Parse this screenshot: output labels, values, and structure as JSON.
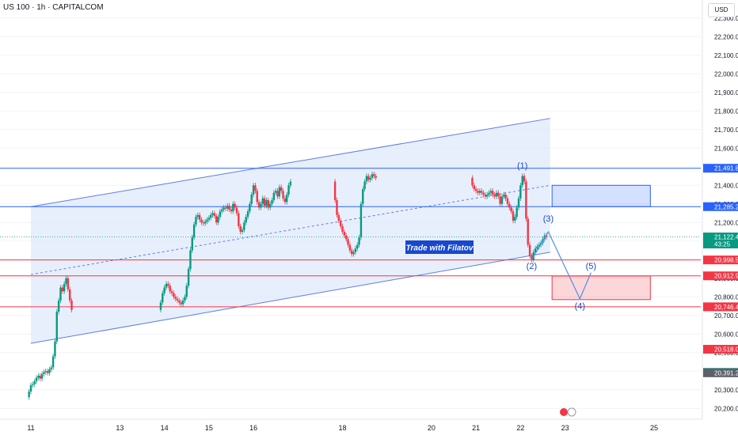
{
  "chart_data": {
    "type": "candlestick",
    "title": "US 100 · 1h · CAPITALCOM",
    "currency": "USD",
    "watermark_text": "Trade with Filatov",
    "ylim": [
      20150,
      22380
    ],
    "y_ticks": [
      20200,
      20300,
      20400,
      20500,
      20600,
      20700,
      20800,
      20900,
      21000,
      21100,
      21200,
      21300,
      21400,
      21500,
      21600,
      21700,
      21800,
      21900,
      22000,
      22100,
      22200,
      22300
    ],
    "y_tick_labels": [
      "20,200.0",
      "20,300.0",
      "20,400.0",
      "20,500.0",
      "20,600.0",
      "20,700.0",
      "20,800.0",
      "20,900.0",
      "21,000.0",
      "21,100.0",
      "21,200.0",
      "21,300.0",
      "21,400.0",
      "21,500.0",
      "21,600.0",
      "21,700.0",
      "21,800.0",
      "21,900.0",
      "22,000.0",
      "22,100.0",
      "22,200.0",
      "22,300.0"
    ],
    "x_ticks": [
      {
        "date": "2025-07-11",
        "label": "11"
      },
      {
        "date": "2025-07-13",
        "label": "13"
      },
      {
        "date": "2025-07-14",
        "label": "14"
      },
      {
        "date": "2025-07-15",
        "label": "15"
      },
      {
        "date": "2025-07-16",
        "label": "16"
      },
      {
        "date": "2025-07-18",
        "label": "18"
      },
      {
        "date": "2025-07-20",
        "label": "20"
      },
      {
        "date": "2025-07-21",
        "label": "21"
      },
      {
        "date": "2025-07-22",
        "label": "22"
      },
      {
        "date": "2025-07-23",
        "label": "23"
      },
      {
        "date": "2025-07-25",
        "label": "25"
      }
    ],
    "price_series": {
      "name": "US 100",
      "points": [
        [
          "2025-07-10T23:00",
          20290
        ],
        [
          "2025-07-11T00:00",
          20325
        ],
        [
          "2025-07-11T01:00",
          20330
        ],
        [
          "2025-07-11T02:00",
          20345
        ],
        [
          "2025-07-11T03:00",
          20365
        ],
        [
          "2025-07-11T04:00",
          20375
        ],
        [
          "2025-07-11T05:00",
          20360
        ],
        [
          "2025-07-11T06:00",
          20385
        ],
        [
          "2025-07-11T07:00",
          20395
        ],
        [
          "2025-07-11T08:00",
          20400
        ],
        [
          "2025-07-11T09:00",
          20390
        ],
        [
          "2025-07-11T10:00",
          20410
        ],
        [
          "2025-07-11T11:00",
          20420
        ],
        [
          "2025-07-11T12:00",
          20480
        ],
        [
          "2025-07-11T13:00",
          20560
        ],
        [
          "2025-07-11T14:00",
          20720
        ],
        [
          "2025-07-11T15:00",
          20780
        ],
        [
          "2025-07-11T16:00",
          20850
        ],
        [
          "2025-07-11T17:00",
          20830
        ],
        [
          "2025-07-11T18:00",
          20870
        ],
        [
          "2025-07-11T19:00",
          20900
        ],
        [
          "2025-07-11T20:00",
          20840
        ],
        [
          "2025-07-11T21:00",
          20780
        ],
        [
          "2025-07-11T22:00",
          20730
        ],
        [
          "2025-07-13T22:00",
          20770
        ],
        [
          "2025-07-13T23:00",
          20820
        ],
        [
          "2025-07-14T00:00",
          20850
        ],
        [
          "2025-07-14T01:00",
          20870
        ],
        [
          "2025-07-14T02:00",
          20860
        ],
        [
          "2025-07-14T03:00",
          20830
        ],
        [
          "2025-07-14T04:00",
          20820
        ],
        [
          "2025-07-14T05:00",
          20800
        ],
        [
          "2025-07-14T06:00",
          20790
        ],
        [
          "2025-07-14T07:00",
          20780
        ],
        [
          "2025-07-14T08:00",
          20770
        ],
        [
          "2025-07-14T09:00",
          20760
        ],
        [
          "2025-07-14T10:00",
          20780
        ],
        [
          "2025-07-14T11:00",
          20800
        ],
        [
          "2025-07-14T12:00",
          20860
        ],
        [
          "2025-07-14T13:00",
          20950
        ],
        [
          "2025-07-14T14:00",
          21050
        ],
        [
          "2025-07-14T15:00",
          21120
        ],
        [
          "2025-07-14T16:00",
          21190
        ],
        [
          "2025-07-14T17:00",
          21230
        ],
        [
          "2025-07-14T18:00",
          21240
        ],
        [
          "2025-07-14T19:00",
          21215
        ],
        [
          "2025-07-14T20:00",
          21200
        ],
        [
          "2025-07-14T21:00",
          21195
        ],
        [
          "2025-07-14T22:00",
          21205
        ],
        [
          "2025-07-14T23:00",
          21215
        ],
        [
          "2025-07-15T00:00",
          21225
        ],
        [
          "2025-07-15T01:00",
          21240
        ],
        [
          "2025-07-15T02:00",
          21250
        ],
        [
          "2025-07-15T03:00",
          21235
        ],
        [
          "2025-07-15T04:00",
          21200
        ],
        [
          "2025-07-15T05:00",
          21230
        ],
        [
          "2025-07-15T06:00",
          21260
        ],
        [
          "2025-07-15T07:00",
          21270
        ],
        [
          "2025-07-15T08:00",
          21280
        ],
        [
          "2025-07-15T09:00",
          21275
        ],
        [
          "2025-07-15T10:00",
          21290
        ],
        [
          "2025-07-15T11:00",
          21270
        ],
        [
          "2025-07-15T12:00",
          21260
        ],
        [
          "2025-07-15T13:00",
          21300
        ],
        [
          "2025-07-15T14:00",
          21280
        ],
        [
          "2025-07-15T15:00",
          21250
        ],
        [
          "2025-07-15T16:00",
          21180
        ],
        [
          "2025-07-15T17:00",
          21150
        ],
        [
          "2025-07-15T18:00",
          21160
        ],
        [
          "2025-07-15T19:00",
          21200
        ],
        [
          "2025-07-15T20:00",
          21230
        ],
        [
          "2025-07-15T21:00",
          21260
        ],
        [
          "2025-07-15T22:00",
          21300
        ],
        [
          "2025-07-15T23:00",
          21350
        ],
        [
          "2025-07-16T00:00",
          21400
        ],
        [
          "2025-07-16T01:00",
          21370
        ],
        [
          "2025-07-16T02:00",
          21310
        ],
        [
          "2025-07-16T03:00",
          21280
        ],
        [
          "2025-07-16T04:00",
          21300
        ],
        [
          "2025-07-16T05:00",
          21330
        ],
        [
          "2025-07-16T06:00",
          21290
        ],
        [
          "2025-07-16T07:00",
          21320
        ],
        [
          "2025-07-16T08:00",
          21280
        ],
        [
          "2025-07-16T09:00",
          21300
        ],
        [
          "2025-07-16T10:00",
          21320
        ],
        [
          "2025-07-16T11:00",
          21360
        ],
        [
          "2025-07-16T12:00",
          21370
        ],
        [
          "2025-07-16T13:00",
          21340
        ],
        [
          "2025-07-16T14:00",
          21390
        ],
        [
          "2025-07-16T15:00",
          21370
        ],
        [
          "2025-07-16T16:00",
          21330
        ],
        [
          "2025-07-16T17:00",
          21310
        ],
        [
          "2025-07-16T18:00",
          21350
        ],
        [
          "2025-07-16T19:00",
          21400
        ],
        [
          "2025-07-16T20:00",
          21420
        ],
        [
          "2025-07-17T20:00",
          21320
        ],
        [
          "2025-07-17T21:00",
          21240
        ],
        [
          "2025-07-17T22:00",
          21210
        ],
        [
          "2025-07-17T23:00",
          21180
        ],
        [
          "2025-07-18T00:00",
          21150
        ],
        [
          "2025-07-18T01:00",
          21130
        ],
        [
          "2025-07-18T02:00",
          21110
        ],
        [
          "2025-07-18T03:00",
          21080
        ],
        [
          "2025-07-18T04:00",
          21050
        ],
        [
          "2025-07-18T05:00",
          21030
        ],
        [
          "2025-07-18T06:00",
          21040
        ],
        [
          "2025-07-18T07:00",
          21060
        ],
        [
          "2025-07-18T08:00",
          21080
        ],
        [
          "2025-07-18T09:00",
          21120
        ],
        [
          "2025-07-18T10:00",
          21300
        ],
        [
          "2025-07-18T11:00",
          21380
        ],
        [
          "2025-07-18T12:00",
          21420
        ],
        [
          "2025-07-18T13:00",
          21450
        ],
        [
          "2025-07-18T14:00",
          21430
        ],
        [
          "2025-07-18T15:00",
          21440
        ],
        [
          "2025-07-18T16:00",
          21460
        ],
        [
          "2025-07-18T17:00",
          21450
        ],
        [
          "2025-07-18T18:00",
          21440
        ],
        [
          "2025-07-20T22:00",
          21400
        ],
        [
          "2025-07-20T23:00",
          21380
        ],
        [
          "2025-07-21T00:00",
          21370
        ],
        [
          "2025-07-21T01:00",
          21360
        ],
        [
          "2025-07-21T02:00",
          21370
        ],
        [
          "2025-07-21T03:00",
          21360
        ],
        [
          "2025-07-21T04:00",
          21350
        ],
        [
          "2025-07-21T05:00",
          21340
        ],
        [
          "2025-07-21T06:00",
          21350
        ],
        [
          "2025-07-21T07:00",
          21360
        ],
        [
          "2025-07-21T08:00",
          21370
        ],
        [
          "2025-07-21T09:00",
          21350
        ],
        [
          "2025-07-21T10:00",
          21340
        ],
        [
          "2025-07-21T11:00",
          21360
        ],
        [
          "2025-07-21T12:00",
          21340
        ],
        [
          "2025-07-21T13:00",
          21300
        ],
        [
          "2025-07-21T14:00",
          21340
        ],
        [
          "2025-07-21T15:00",
          21350
        ],
        [
          "2025-07-21T16:00",
          21330
        ],
        [
          "2025-07-21T17:00",
          21300
        ],
        [
          "2025-07-21T18:00",
          21280
        ],
        [
          "2025-07-21T19:00",
          21260
        ],
        [
          "2025-07-21T20:00",
          21210
        ],
        [
          "2025-07-21T21:00",
          21230
        ],
        [
          "2025-07-21T22:00",
          21280
        ],
        [
          "2025-07-21T23:00",
          21330
        ],
        [
          "2025-07-22T00:00",
          21400
        ],
        [
          "2025-07-22T01:00",
          21450
        ],
        [
          "2025-07-22T02:00",
          21420
        ],
        [
          "2025-07-22T03:00",
          21220
        ],
        [
          "2025-07-22T04:00",
          21080
        ],
        [
          "2025-07-22T05:00",
          21020
        ],
        [
          "2025-07-22T06:00",
          21000
        ],
        [
          "2025-07-22T07:00",
          21040
        ],
        [
          "2025-07-22T08:00",
          21060
        ],
        [
          "2025-07-22T09:00",
          21070
        ],
        [
          "2025-07-22T10:00",
          21080
        ],
        [
          "2025-07-22T11:00",
          21090
        ],
        [
          "2025-07-22T12:00",
          21110
        ],
        [
          "2025-07-22T13:00",
          21130
        ],
        [
          "2025-07-22T14:00",
          21122.4
        ]
      ]
    },
    "channel_upper_line": {
      "points": [
        [
          "2025-07-11T00:00",
          21285
        ],
        [
          "2025-07-22T16:00",
          21760
        ]
      ]
    },
    "channel_lower_line": {
      "points": [
        [
          "2025-07-11T00:00",
          20550
        ],
        [
          "2025-07-22T16:00",
          21040
        ]
      ]
    },
    "channel_mid_line": {
      "points": [
        [
          "2025-07-11T00:00",
          20920
        ],
        [
          "2025-07-22T16:00",
          21400
        ]
      ]
    },
    "horizontal_levels": [
      {
        "value": 21491.8,
        "label": "21,491.8",
        "color": "#2962ff"
      },
      {
        "value": 21285.2,
        "label": "21,285.2",
        "color": "#2962ff"
      },
      {
        "value": 20998.5,
        "label": "20,998.5",
        "color": "#f23645"
      },
      {
        "value": 20912.9,
        "label": "20,912.9",
        "color": "#f23645"
      },
      {
        "value": 20746.4,
        "label": "20,746.4",
        "color": "#f23645"
      }
    ],
    "zones": [
      {
        "from": "2025-07-22T17:00",
        "to": "2025-07-24T22:00",
        "top": 21400,
        "bottom": 21285,
        "color": "#2962ff"
      },
      {
        "from": "2025-07-22T17:00",
        "to": "2025-07-24T22:00",
        "top": 20912,
        "bottom": 20785,
        "color": "#f23645"
      }
    ],
    "wave_path": [
      [
        "2025-07-22T06:00",
        21000
      ],
      [
        "2025-07-22T15:00",
        21150
      ],
      [
        "2025-07-23T08:00",
        20790
      ],
      [
        "2025-07-23T14:00",
        20930
      ]
    ],
    "wave_labels": [
      {
        "text": "(1)",
        "x": "2025-07-22T01:00",
        "y": 21490
      },
      {
        "text": "(2)",
        "x": "2025-07-22T06:00",
        "y": 20950
      },
      {
        "text": "(3)",
        "x": "2025-07-22T15:00",
        "y": 21205
      },
      {
        "text": "(4)",
        "x": "2025-07-23T08:00",
        "y": 20735
      },
      {
        "text": "(5)",
        "x": "2025-07-23T14:00",
        "y": 20950
      }
    ],
    "price_labels": [
      {
        "value": 21491.8,
        "text": "21,491.8",
        "bg": "#2962ff"
      },
      {
        "value": 21285.2,
        "text": "21,285.2",
        "bg": "#2962ff"
      },
      {
        "value": 21122.4,
        "text": "21,122.4",
        "sub": "43:25",
        "bg": "#089981"
      },
      {
        "value": 20998.5,
        "text": "20,998.5",
        "bg": "#f23645"
      },
      {
        "value": 20912.9,
        "text": "20,912.9",
        "bg": "#f23645"
      },
      {
        "value": 20746.4,
        "text": "20,746.4",
        "bg": "#f23645"
      },
      {
        "value": 20518.0,
        "text": "20,518.0",
        "bg": "#f23645"
      },
      {
        "value": 20393.6,
        "text": "20,393.6",
        "bg": "#089981"
      },
      {
        "value": 20391.2,
        "text": "20,391.2",
        "bg": "#5d606b"
      }
    ],
    "colors": {
      "up": "#089981",
      "down": "#f23645",
      "channel_line": "#5b7fe0",
      "channel_fill": "#dbe6fb",
      "blue_level": "#2962ff",
      "red_level": "#f23645",
      "wave": "#4f90e8",
      "label_bg": "#1848cc"
    }
  }
}
